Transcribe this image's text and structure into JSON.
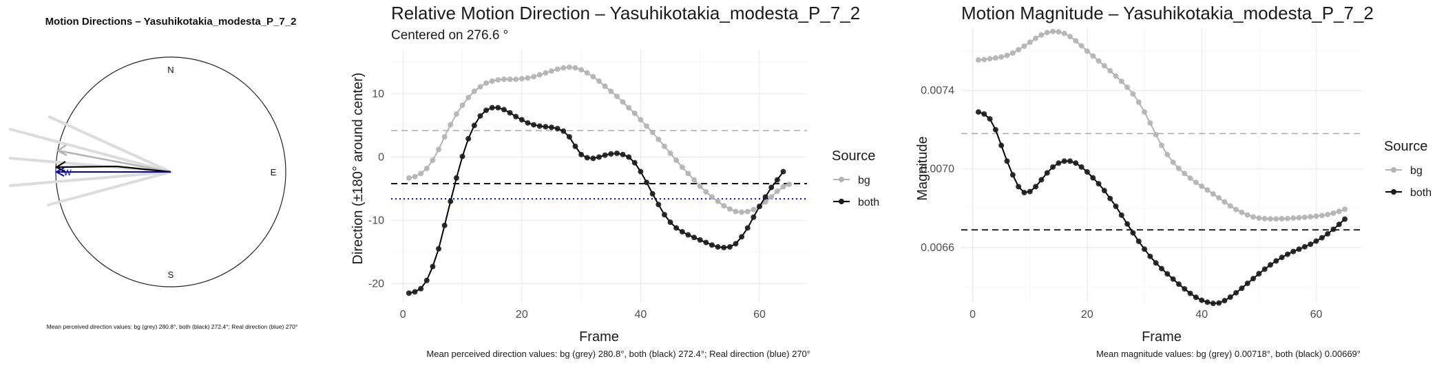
{
  "compass": {
    "title": "Motion Directions – Yasuhikotakia_modesta_P_7_2",
    "cardinals": {
      "n": "N",
      "e": "E",
      "s": "S",
      "w": "W"
    },
    "caption": "Mean perceived direction values: bg (grey) 280.8°, both (black) 272.4°; Real direction (blue) 270°",
    "directions": {
      "bg": 280.8,
      "both": 272.4,
      "real": 270
    },
    "colors": {
      "bg": "#b3b3b3",
      "both": "#000000",
      "real": "#0000cc"
    }
  },
  "direction_panel": {
    "title": "Relative Motion Direction – Yasuhikotakia_modesta_P_7_2",
    "subtitle": "Centered on  276.6 °",
    "xlabel": "Frame",
    "ylabel": "Direction (±180° around center)",
    "legend": {
      "title": "Source",
      "items": [
        "bg",
        "both"
      ]
    },
    "caption": "Mean perceived direction values: bg (grey) 280.8°, both (black) 272.4°; Real direction (blue) 270°"
  },
  "magnitude_panel": {
    "title": "Motion Magnitude – Yasuhikotakia_modesta_P_7_2",
    "xlabel": "Frame",
    "ylabel": "Magnitude",
    "legend": {
      "title": "Source",
      "items": [
        "bg",
        "both"
      ]
    },
    "caption": "Mean magnitude values: bg (grey) 0.00718°, both (black) 0.00669°"
  },
  "chart_data": [
    {
      "type": "line",
      "title": "Relative Motion Direction – Yasuhikotakia_modesta_P_7_2",
      "xlabel": "Frame",
      "ylabel": "Direction (±180° around center)",
      "xlim": [
        -2,
        68
      ],
      "ylim": [
        -23,
        17
      ],
      "xticks": [
        0,
        20,
        40,
        60
      ],
      "yticks": [
        -20,
        -10,
        0,
        10
      ],
      "grid": true,
      "legend_position": "right",
      "x_start": 1,
      "series": [
        {
          "name": "bg",
          "color": "#b3b3b3",
          "values": [
            -3.3,
            -3.1,
            -2.6,
            -1.8,
            -0.5,
            1.2,
            3.2,
            5.1,
            6.8,
            8.2,
            9.4,
            10.4,
            11.1,
            11.7,
            12.0,
            12.2,
            12.3,
            12.3,
            12.3,
            12.4,
            12.5,
            12.7,
            13.0,
            13.3,
            13.6,
            13.9,
            14.1,
            14.2,
            14.1,
            13.8,
            13.3,
            12.7,
            12.0,
            11.2,
            10.4,
            9.6,
            8.7,
            7.8,
            6.9,
            5.9,
            4.9,
            3.9,
            2.8,
            1.7,
            0.6,
            -0.5,
            -1.6,
            -2.6,
            -3.6,
            -4.6,
            -5.5,
            -6.3,
            -7.0,
            -7.7,
            -8.2,
            -8.6,
            -8.7,
            -8.6,
            -8.3,
            -7.8,
            -7.1,
            -6.3,
            -5.4,
            -4.7,
            -4.3
          ]
        },
        {
          "name": "both",
          "color": "#000000",
          "values": [
            -21.5,
            -21.3,
            -20.8,
            -19.5,
            -17.3,
            -14.5,
            -10.8,
            -7.0,
            -3.3,
            0.1,
            2.9,
            5.0,
            6.5,
            7.4,
            7.8,
            7.8,
            7.5,
            7.0,
            6.4,
            5.9,
            5.4,
            5.1,
            4.9,
            4.8,
            4.7,
            4.5,
            4.1,
            3.2,
            1.7,
            0.4,
            -0.1,
            -0.2,
            0.0,
            0.3,
            0.5,
            0.6,
            0.4,
            0.0,
            -0.9,
            -2.3,
            -4.0,
            -5.8,
            -7.5,
            -9.1,
            -10.3,
            -11.2,
            -11.8,
            -12.3,
            -12.7,
            -13.1,
            -13.5,
            -13.9,
            -14.2,
            -14.3,
            -14.2,
            -13.7,
            -12.6,
            -11.2,
            -9.5,
            -7.8,
            -6.3,
            -4.8,
            -3.6,
            -2.3
          ]
        }
      ],
      "reference_lines": [
        {
          "label": "mean bg",
          "value": 4.2,
          "color": "#b3b3b3",
          "style": "dashed"
        },
        {
          "label": "mean both",
          "value": -4.2,
          "color": "#000000",
          "style": "dashed"
        },
        {
          "label": "real direction",
          "value": -6.6,
          "color": "#0000cc",
          "style": "dotted"
        }
      ]
    },
    {
      "type": "line",
      "title": "Motion Magnitude – Yasuhikotakia_modesta_P_7_2",
      "xlabel": "Frame",
      "ylabel": "Magnitude",
      "xlim": [
        -2,
        68
      ],
      "ylim": [
        0.00632,
        0.00772
      ],
      "xticks": [
        0,
        20,
        40,
        60
      ],
      "yticks": [
        0.0066,
        0.007,
        0.0074
      ],
      "ytick_labels": [
        "0.0066",
        "0.0070",
        "0.0074"
      ],
      "grid": true,
      "legend_position": "right",
      "x_start": 1,
      "series": [
        {
          "name": "bg",
          "color": "#b3b3b3",
          "values": [
            0.007555,
            0.007557,
            0.007561,
            0.007565,
            0.00757,
            0.007578,
            0.00759,
            0.007607,
            0.007625,
            0.007645,
            0.007665,
            0.007682,
            0.007694,
            0.0077,
            0.007698,
            0.00769,
            0.007674,
            0.007652,
            0.007627,
            0.0076,
            0.007575,
            0.00755,
            0.007525,
            0.0075,
            0.007473,
            0.007446,
            0.007416,
            0.007382,
            0.00734,
            0.00729,
            0.007234,
            0.007175,
            0.00712,
            0.007073,
            0.007034,
            0.007003,
            0.006977,
            0.006953,
            0.006932,
            0.006912,
            0.006893,
            0.006873,
            0.006853,
            0.006832,
            0.006812,
            0.006794,
            0.006779,
            0.006766,
            0.006756,
            0.00675,
            0.006747,
            0.006746,
            0.006746,
            0.006747,
            0.006748,
            0.00675,
            0.006752,
            0.006754,
            0.006757,
            0.00676,
            0.006763,
            0.006768,
            0.006775,
            0.006784,
            0.006795
          ]
        },
        {
          "name": "both",
          "color": "#000000",
          "values": [
            0.00729,
            0.00728,
            0.007255,
            0.0072,
            0.00712,
            0.00704,
            0.00697,
            0.00691,
            0.00688,
            0.006885,
            0.00691,
            0.006945,
            0.00698,
            0.00701,
            0.00703,
            0.00704,
            0.00704,
            0.00703,
            0.00701,
            0.006985,
            0.006955,
            0.006925,
            0.00689,
            0.00685,
            0.00681,
            0.006765,
            0.00672,
            0.006675,
            0.006632,
            0.006592,
            0.006555,
            0.006522,
            0.006493,
            0.006466,
            0.00644,
            0.006414,
            0.00639,
            0.006367,
            0.006347,
            0.006332,
            0.006322,
            0.006316,
            0.006318,
            0.00633,
            0.006348,
            0.00637,
            0.006393,
            0.006418,
            0.006442,
            0.006467,
            0.00649,
            0.006512,
            0.006532,
            0.00655,
            0.006566,
            0.00658,
            0.006592,
            0.006604,
            0.006617,
            0.006633,
            0.00665,
            0.00667,
            0.006693,
            0.006718,
            0.006745
          ]
        }
      ],
      "reference_lines": [
        {
          "label": "mean bg",
          "value": 0.00718,
          "color": "#b3b3b3",
          "style": "dashed"
        },
        {
          "label": "mean both",
          "value": 0.00669,
          "color": "#000000",
          "style": "dashed"
        }
      ]
    }
  ]
}
